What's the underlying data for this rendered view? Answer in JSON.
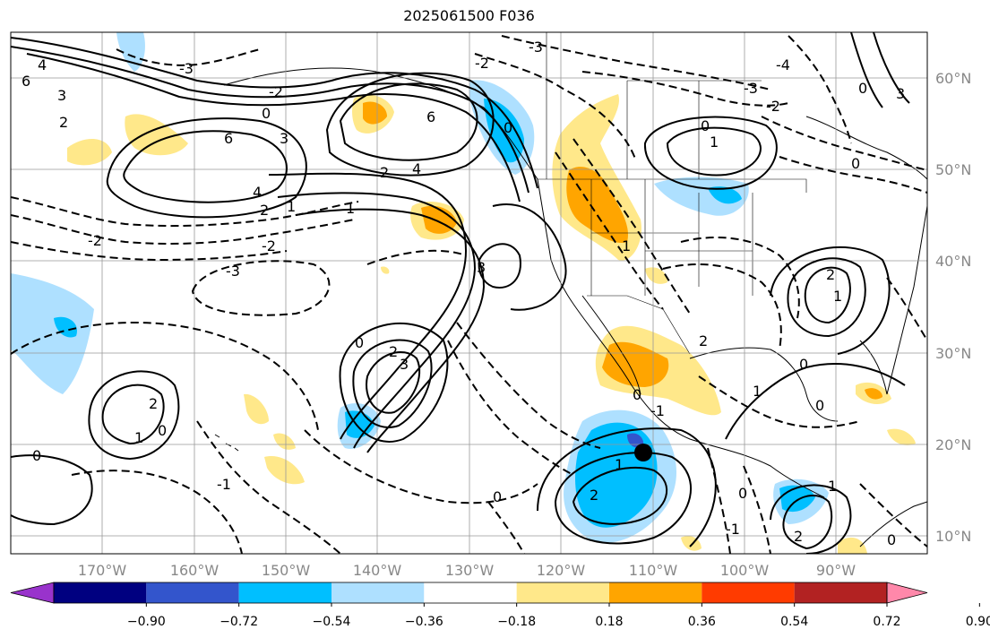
{
  "title": "2025061500 F036",
  "map": {
    "lat_labels": [
      "60°N",
      "50°N",
      "40°N",
      "30°N",
      "20°N",
      "10°N"
    ],
    "lon_labels": [
      "170°W",
      "160°W",
      "150°W",
      "140°W",
      "130°W",
      "120°W",
      "110°W",
      "100°W",
      "90°W"
    ],
    "marker": {
      "lon": -111,
      "lat": 19,
      "color": "#000000",
      "icon": "location-dot"
    },
    "contour_labels": [
      "-3",
      "-2",
      "-1",
      "0",
      "1",
      "2",
      "3",
      "4",
      "6",
      "-4"
    ]
  },
  "colorbar": {
    "labels": [
      "−0.90",
      "−0.72",
      "−0.54",
      "−0.36",
      "−0.18",
      "0.18",
      "0.36",
      "0.54",
      "0.72",
      "0.90"
    ],
    "colors": [
      "#9933cc",
      "#000080",
      "#3355cc",
      "#00bfff",
      "#aee0ff",
      "#ffffff",
      "#ffe88a",
      "#ffa500",
      "#ff3b00",
      "#b22222",
      "#ff88aa"
    ]
  }
}
